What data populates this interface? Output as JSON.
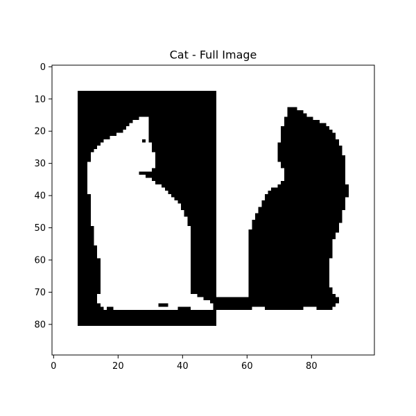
{
  "chart_data": {
    "type": "heatmap",
    "title": "Cat - Full Image",
    "xlabel": "",
    "ylabel": "",
    "xlim": [
      -0.5,
      99.5
    ],
    "ylim": [
      89.5,
      -0.5
    ],
    "x_ticks": [
      0,
      20,
      40,
      60,
      80
    ],
    "y_ticks": [
      0,
      10,
      20,
      30,
      40,
      50,
      60,
      70,
      80
    ],
    "grid": false,
    "colormap": [
      "#ffffff",
      "#000000"
    ],
    "value_meaning": "1 = black pixel, 0 = white pixel",
    "description": "Binary image: left half shows a white cat silhouette inside a black rectangle (x 8-50, y 8-80); right half shows a black cat silhouette on white.",
    "left_panel": {
      "fill_value": 1,
      "x_range": [
        8,
        50
      ],
      "y_range": [
        8,
        80
      ],
      "white_cat_rows": [
        [
          16,
          27,
          29
        ],
        [
          17,
          25,
          29
        ],
        [
          18,
          24,
          29
        ],
        [
          19,
          23,
          29
        ],
        [
          20,
          22,
          29
        ],
        [
          21,
          20,
          29
        ],
        [
          22,
          18,
          29
        ],
        [
          23,
          16,
          29
        ],
        [
          24,
          15,
          30
        ],
        [
          25,
          14,
          30
        ],
        [
          26,
          13,
          30
        ],
        [
          27,
          12,
          31
        ],
        [
          28,
          12,
          31
        ],
        [
          29,
          12,
          31
        ],
        [
          30,
          11,
          31
        ],
        [
          31,
          11,
          31
        ],
        [
          32,
          11,
          30
        ],
        [
          33,
          11,
          26
        ],
        [
          34,
          11,
          28
        ],
        [
          35,
          11,
          30
        ],
        [
          36,
          11,
          31
        ],
        [
          37,
          11,
          33
        ],
        [
          38,
          11,
          34
        ],
        [
          39,
          11,
          35
        ],
        [
          40,
          12,
          36
        ],
        [
          41,
          12,
          37
        ],
        [
          42,
          12,
          38
        ],
        [
          43,
          12,
          39
        ],
        [
          44,
          12,
          39
        ],
        [
          45,
          12,
          40
        ],
        [
          46,
          12,
          40
        ],
        [
          47,
          12,
          41
        ],
        [
          48,
          12,
          41
        ],
        [
          49,
          12,
          41
        ],
        [
          50,
          13,
          42
        ],
        [
          51,
          13,
          42
        ],
        [
          52,
          13,
          42
        ],
        [
          53,
          13,
          42
        ],
        [
          54,
          13,
          42
        ],
        [
          55,
          13,
          42
        ],
        [
          56,
          14,
          42
        ],
        [
          57,
          14,
          42
        ],
        [
          58,
          14,
          42
        ],
        [
          59,
          14,
          42
        ],
        [
          60,
          15,
          42
        ],
        [
          61,
          15,
          42
        ],
        [
          62,
          15,
          42
        ],
        [
          63,
          15,
          42
        ],
        [
          64,
          15,
          42
        ],
        [
          65,
          15,
          42
        ],
        [
          66,
          15,
          42
        ],
        [
          67,
          15,
          42
        ],
        [
          68,
          15,
          42
        ],
        [
          69,
          15,
          42
        ],
        [
          70,
          15,
          42
        ],
        [
          71,
          14,
          44
        ],
        [
          72,
          14,
          46
        ],
        [
          73,
          14,
          48
        ],
        [
          74,
          15,
          49
        ],
        [
          75,
          16,
          49
        ]
      ]
    },
    "right_panel": {
      "fill_value": 1,
      "black_cat_rows": [
        [
          13,
          73,
          75
        ],
        [
          14,
          73,
          77
        ],
        [
          15,
          73,
          78
        ],
        [
          16,
          72,
          80
        ],
        [
          17,
          72,
          82
        ],
        [
          18,
          72,
          84
        ],
        [
          19,
          71,
          85
        ],
        [
          20,
          71,
          86
        ],
        [
          21,
          71,
          87
        ],
        [
          22,
          71,
          87
        ],
        [
          23,
          71,
          88
        ],
        [
          24,
          70,
          88
        ],
        [
          25,
          70,
          89
        ],
        [
          26,
          70,
          89
        ],
        [
          27,
          70,
          89
        ],
        [
          28,
          70,
          90
        ],
        [
          29,
          70,
          90
        ],
        [
          30,
          71,
          90
        ],
        [
          31,
          71,
          90
        ],
        [
          32,
          72,
          90
        ],
        [
          33,
          72,
          90
        ],
        [
          34,
          72,
          90
        ],
        [
          35,
          72,
          90
        ],
        [
          36,
          71,
          90
        ],
        [
          37,
          70,
          91
        ],
        [
          38,
          68,
          91
        ],
        [
          39,
          67,
          91
        ],
        [
          40,
          66,
          91
        ],
        [
          41,
          66,
          90
        ],
        [
          42,
          65,
          90
        ],
        [
          43,
          65,
          90
        ],
        [
          44,
          64,
          90
        ],
        [
          45,
          64,
          89
        ],
        [
          46,
          63,
          89
        ],
        [
          47,
          63,
          89
        ],
        [
          48,
          62,
          89
        ],
        [
          49,
          62,
          88
        ],
        [
          50,
          62,
          88
        ],
        [
          51,
          61,
          88
        ],
        [
          52,
          61,
          87
        ],
        [
          53,
          61,
          87
        ],
        [
          54,
          61,
          86
        ],
        [
          55,
          61,
          86
        ],
        [
          56,
          61,
          86
        ],
        [
          57,
          61,
          86
        ],
        [
          58,
          61,
          86
        ],
        [
          59,
          61,
          86
        ],
        [
          60,
          61,
          85
        ],
        [
          61,
          61,
          85
        ],
        [
          62,
          61,
          85
        ],
        [
          63,
          61,
          85
        ],
        [
          64,
          61,
          85
        ],
        [
          65,
          61,
          85
        ],
        [
          66,
          61,
          85
        ],
        [
          67,
          61,
          85
        ],
        [
          68,
          61,
          85
        ],
        [
          69,
          61,
          86
        ],
        [
          70,
          61,
          86
        ],
        [
          71,
          61,
          87
        ],
        [
          72,
          61,
          88
        ],
        [
          73,
          61,
          88
        ],
        [
          74,
          61,
          87
        ],
        [
          75,
          61,
          86
        ]
      ],
      "bridge_rows": [
        [
          72,
          51,
          61
        ],
        [
          73,
          51,
          61
        ],
        [
          74,
          51,
          61
        ],
        [
          75,
          51,
          61
        ]
      ]
    },
    "right_cut_cells": [
      [
        75,
        62,
        65
      ],
      [
        75,
        78,
        81
      ]
    ],
    "left_bottom_cells": [
      [
        75,
        17,
        18
      ],
      [
        74,
        33,
        35
      ],
      [
        75,
        39,
        42
      ]
    ]
  }
}
